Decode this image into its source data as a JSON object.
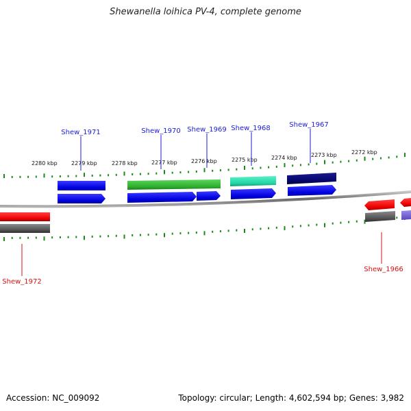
{
  "title": "Shewanella loihica PV-4, complete genome",
  "footer": {
    "accession": "Accession: NC_009092",
    "stats": "Topology: circular; Length: 4,602,594 bp; Genes: 3,982"
  },
  "colors": {
    "forward_label": "#1a1adb",
    "reverse_label": "#d81010",
    "tick": "#1a8a1a",
    "backbone": "#888888"
  },
  "scale_labels": [
    {
      "label": "2280 kbp"
    },
    {
      "label": "2279 kbp"
    },
    {
      "label": "2278 kbp"
    },
    {
      "label": "2277 kbp"
    },
    {
      "label": "2276 kbp"
    },
    {
      "label": "2275 kbp"
    },
    {
      "label": "2274 kbp"
    },
    {
      "label": "2273 kbp"
    },
    {
      "label": "2272 kbp"
    }
  ],
  "gene_labels": [
    {
      "label": "Shew_1971",
      "strand": "forward"
    },
    {
      "label": "Shew_1970",
      "strand": "forward"
    },
    {
      "label": "Shew_1969",
      "strand": "forward"
    },
    {
      "label": "Shew_1968",
      "strand": "forward"
    },
    {
      "label": "Shew_1967",
      "strand": "forward"
    },
    {
      "label": "Shew_1972",
      "strand": "reverse"
    },
    {
      "label": "Shew_1966",
      "strand": "reverse"
    }
  ]
}
